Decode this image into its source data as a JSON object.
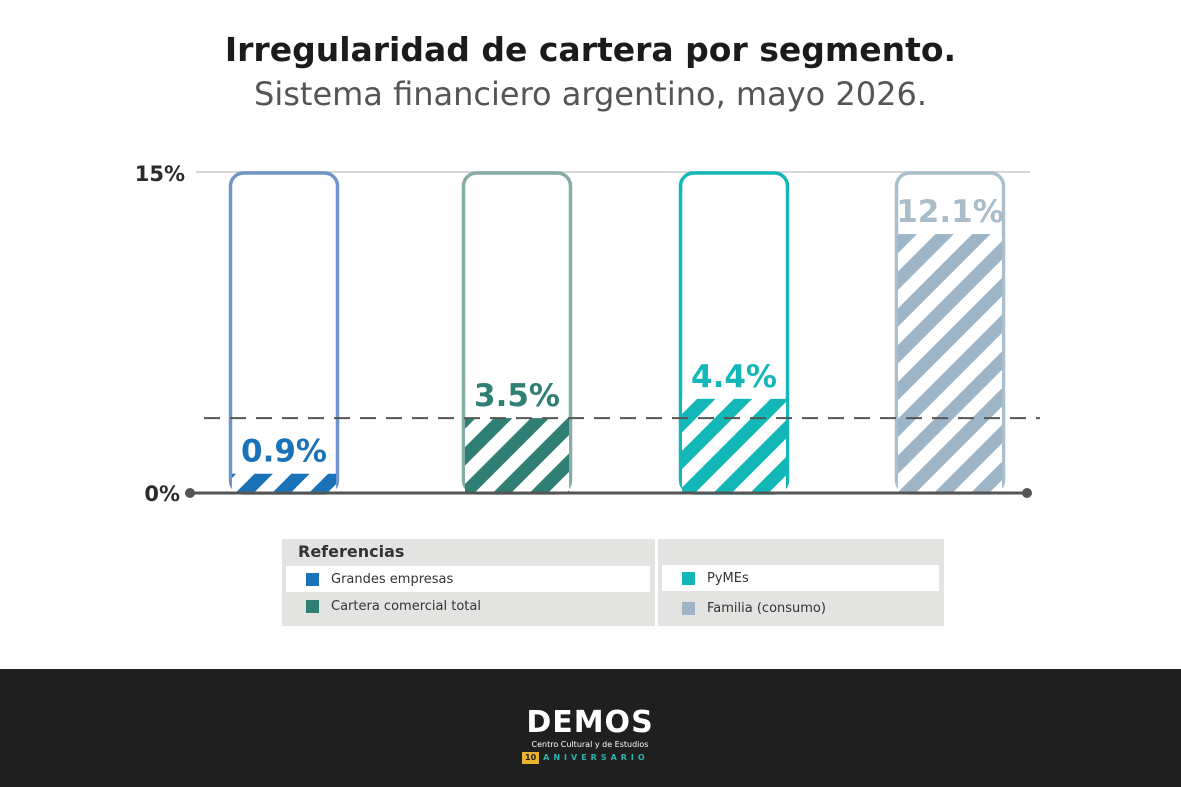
{
  "title": "Irregularidad de cartera por segmento.",
  "subtitle": "Sistema financiero argentino, mayo 2026.",
  "chart_data": {
    "type": "bar",
    "categories": [
      "Grandes empresas",
      "Cartera comercial total",
      "PyMEs",
      "Familia (consumo)"
    ],
    "values": [
      0.9,
      3.5,
      4.4,
      12.1
    ],
    "value_labels": [
      "0.9%",
      "3.5%",
      "4.4%",
      "12.1%"
    ],
    "colors": [
      "#1a73b8",
      "#2f7f74",
      "#13b7b7",
      "#9db5c6"
    ],
    "outline_colors": [
      "#6f96c5",
      "#86aca7",
      "#13b7b7",
      "#a9bfcd"
    ],
    "label_colors": [
      "#1a73b8",
      "#2f7f74",
      "#13b7b7",
      "#a9bcc9"
    ],
    "ylim": [
      0,
      15
    ],
    "tick_labels": [
      "0%",
      "15%"
    ],
    "reference_line": 3.5,
    "legend_placement": "bottom"
  },
  "legend": {
    "title": "Referencias",
    "items": [
      {
        "label": "Grandes empresas",
        "color": "#1a73b8"
      },
      {
        "label": "Cartera comercial total",
        "color": "#2f7f74"
      },
      {
        "label": "PyMEs",
        "color": "#13b7b7"
      },
      {
        "label": "Familia (consumo)",
        "color": "#9db5c6"
      }
    ]
  },
  "footer": {
    "logo_word": "DEMOS",
    "logo_sub": "Centro Cultural y de Estudios",
    "badge_number": "10",
    "badge_text": "ANIVERSARIO"
  }
}
